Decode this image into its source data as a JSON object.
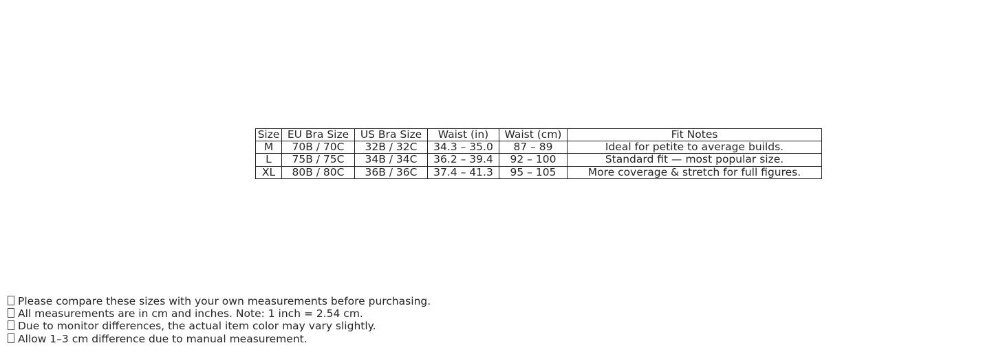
{
  "table": {
    "headers": [
      "Size",
      "EU Bra Size",
      "US Bra Size",
      "Waist (in)",
      "Waist (cm)",
      "Fit Notes"
    ],
    "rows": [
      [
        "M",
        "70B / 70C",
        "32B / 32C",
        "34.3 – 35.0",
        "87 – 89",
        "Ideal for petite to average builds."
      ],
      [
        "L",
        "75B / 75C",
        "34B / 34C",
        "36.2 – 39.4",
        "92 – 100",
        "Standard fit — most popular size."
      ],
      [
        "XL",
        "80B / 80C",
        "36B / 36C",
        "37.4 – 41.3",
        "95 – 105",
        "More coverage & stretch for full figures."
      ]
    ]
  },
  "notes": [
    {
      "icon": "missing-glyph-icon",
      "text": "Please compare these sizes with your own measurements before purchasing."
    },
    {
      "icon": "missing-glyph-icon",
      "text": "All measurements are in cm and inches. Note: 1 inch = 2.54 cm."
    },
    {
      "icon": "missing-glyph-icon",
      "text": "Due to monitor differences, the actual item color may vary slightly."
    },
    {
      "icon": "missing-glyph-icon",
      "text": "Allow 1–3 cm difference due to manual measurement."
    }
  ]
}
